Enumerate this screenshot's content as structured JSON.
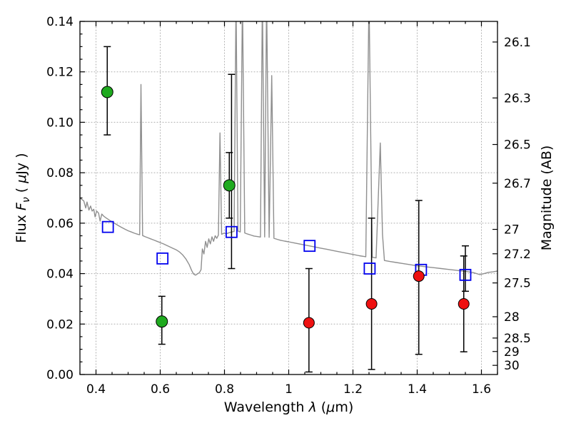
{
  "chart_data": {
    "type": "scatter",
    "title": "",
    "grid": {
      "show": true,
      "style": "dotted",
      "color": "#ababab"
    },
    "axes": {
      "x": {
        "label_parts": [
          {
            "text": "Wavelength  ",
            "style": "normal"
          },
          {
            "text": "λ",
            "style": "italic"
          },
          {
            "text": " (",
            "style": "normal"
          },
          {
            "text": "μ",
            "style": "italic"
          },
          {
            "text": "m)",
            "style": "normal"
          }
        ],
        "min": 0.35,
        "max": 1.65,
        "major_ticks": [
          0.4,
          0.6,
          0.8,
          1.0,
          1.2,
          1.4,
          1.6
        ],
        "major_tick_labels": [
          "0.4",
          "0.6",
          "0.8",
          "1",
          "1.2",
          "1.4",
          "1.6"
        ],
        "minor_tick_step": 0.05
      },
      "y_left": {
        "label_parts": [
          {
            "text": "Flux  ",
            "style": "normal"
          },
          {
            "text": "F",
            "style": "italic"
          },
          {
            "text": "ν",
            "style": "sub"
          },
          {
            "text": "  ( ",
            "style": "normal"
          },
          {
            "text": "μ",
            "style": "italic"
          },
          {
            "text": "Jy )",
            "style": "normal"
          }
        ],
        "min": 0.0,
        "max": 0.14,
        "major_ticks": [
          0.0,
          0.02,
          0.04,
          0.06,
          0.08,
          0.1,
          0.12,
          0.14
        ],
        "major_tick_labels": [
          "0.00",
          "0.02",
          "0.04",
          "0.06",
          "0.08",
          "0.10",
          "0.12",
          "0.14"
        ],
        "minor_tick_step": 0.005
      },
      "y_right": {
        "label": "Magnitude (AB)",
        "tick_mags": [
          26.1,
          26.3,
          26.5,
          26.7,
          27,
          27.2,
          27.5,
          28,
          28.5,
          29,
          30
        ],
        "tick_labels": [
          "26.1",
          "26.3",
          "26.5",
          "26.7",
          "27",
          "27.2",
          "27.5",
          "28",
          "28.5",
          "29",
          "30"
        ],
        "ab_zeropoint_ujy": 23.9
      }
    },
    "spectrum": {
      "name": "model-spectrum",
      "color": "#8f8f8f",
      "width": 1.4,
      "points": [
        [
          0.35,
          0.07
        ],
        [
          0.356,
          0.0694
        ],
        [
          0.362,
          0.0688
        ],
        [
          0.368,
          0.066
        ],
        [
          0.372,
          0.0684
        ],
        [
          0.378,
          0.0652
        ],
        [
          0.383,
          0.0668
        ],
        [
          0.388,
          0.0648
        ],
        [
          0.393,
          0.0655
        ],
        [
          0.397,
          0.0625
        ],
        [
          0.402,
          0.0648
        ],
        [
          0.408,
          0.064
        ],
        [
          0.413,
          0.0608
        ],
        [
          0.418,
          0.0636
        ],
        [
          0.424,
          0.0628
        ],
        [
          0.43,
          0.0622
        ],
        [
          0.437,
          0.0616
        ],
        [
          0.444,
          0.061
        ],
        [
          0.452,
          0.0604
        ],
        [
          0.461,
          0.0597
        ],
        [
          0.47,
          0.059
        ],
        [
          0.48,
          0.0583
        ],
        [
          0.49,
          0.0576
        ],
        [
          0.5,
          0.057
        ],
        [
          0.51,
          0.0565
        ],
        [
          0.52,
          0.056
        ],
        [
          0.53,
          0.0556
        ],
        [
          0.536,
          0.0554
        ],
        [
          0.54,
          0.115
        ],
        [
          0.545,
          0.0551
        ],
        [
          0.552,
          0.0547
        ],
        [
          0.56,
          0.0543
        ],
        [
          0.57,
          0.0538
        ],
        [
          0.58,
          0.0533
        ],
        [
          0.59,
          0.0528
        ],
        [
          0.6,
          0.0523
        ],
        [
          0.61,
          0.0518
        ],
        [
          0.62,
          0.0512
        ],
        [
          0.63,
          0.0506
        ],
        [
          0.64,
          0.05
        ],
        [
          0.65,
          0.0494
        ],
        [
          0.66,
          0.0486
        ],
        [
          0.67,
          0.0474
        ],
        [
          0.68,
          0.0458
        ],
        [
          0.69,
          0.0436
        ],
        [
          0.698,
          0.0412
        ],
        [
          0.704,
          0.0398
        ],
        [
          0.71,
          0.0394
        ],
        [
          0.716,
          0.0399
        ],
        [
          0.722,
          0.0404
        ],
        [
          0.727,
          0.0416
        ],
        [
          0.731,
          0.0498
        ],
        [
          0.736,
          0.0478
        ],
        [
          0.741,
          0.0528
        ],
        [
          0.746,
          0.0504
        ],
        [
          0.751,
          0.0538
        ],
        [
          0.756,
          0.0518
        ],
        [
          0.761,
          0.0546
        ],
        [
          0.766,
          0.0528
        ],
        [
          0.771,
          0.055
        ],
        [
          0.776,
          0.054
        ],
        [
          0.781,
          0.0553
        ],
        [
          0.786,
          0.0958
        ],
        [
          0.791,
          0.0556
        ],
        [
          0.798,
          0.056
        ],
        [
          0.806,
          0.0558
        ],
        [
          0.814,
          0.0562
        ],
        [
          0.822,
          0.0565
        ],
        [
          0.83,
          0.0567
        ],
        [
          0.836,
          0.15
        ],
        [
          0.842,
          0.0569
        ],
        [
          0.849,
          0.0565
        ],
        [
          0.856,
          0.15
        ],
        [
          0.863,
          0.0561
        ],
        [
          0.872,
          0.0557
        ],
        [
          0.882,
          0.0553
        ],
        [
          0.892,
          0.0549
        ],
        [
          0.902,
          0.0547
        ],
        [
          0.912,
          0.0545
        ],
        [
          0.918,
          0.15
        ],
        [
          0.925,
          0.0545
        ],
        [
          0.931,
          0.15
        ],
        [
          0.939,
          0.0544
        ],
        [
          0.947,
          0.1185
        ],
        [
          0.954,
          0.054
        ],
        [
          0.964,
          0.0536
        ],
        [
          0.975,
          0.0532
        ],
        [
          0.987,
          0.0529
        ],
        [
          1.0,
          0.0526
        ],
        [
          1.02,
          0.0521
        ],
        [
          1.04,
          0.0516
        ],
        [
          1.06,
          0.0511
        ],
        [
          1.08,
          0.0506
        ],
        [
          1.1,
          0.0501
        ],
        [
          1.12,
          0.0496
        ],
        [
          1.14,
          0.0491
        ],
        [
          1.16,
          0.0486
        ],
        [
          1.18,
          0.0481
        ],
        [
          1.2,
          0.0476
        ],
        [
          1.22,
          0.0471
        ],
        [
          1.24,
          0.0467
        ],
        [
          1.25,
          0.15
        ],
        [
          1.26,
          0.0465
        ],
        [
          1.272,
          0.0462
        ],
        [
          1.285,
          0.0918
        ],
        [
          1.292,
          0.0555
        ],
        [
          1.298,
          0.0452
        ],
        [
          1.315,
          0.0448
        ],
        [
          1.335,
          0.0444
        ],
        [
          1.355,
          0.044
        ],
        [
          1.375,
          0.0436
        ],
        [
          1.395,
          0.0432
        ],
        [
          1.415,
          0.0429
        ],
        [
          1.435,
          0.0426
        ],
        [
          1.455,
          0.0423
        ],
        [
          1.475,
          0.042
        ],
        [
          1.495,
          0.0417
        ],
        [
          1.515,
          0.0414
        ],
        [
          1.535,
          0.0411
        ],
        [
          1.555,
          0.0408
        ],
        [
          1.575,
          0.0404
        ],
        [
          1.595,
          0.0396
        ],
        [
          1.608,
          0.04
        ],
        [
          1.622,
          0.0405
        ],
        [
          1.636,
          0.0407
        ],
        [
          1.65,
          0.041
        ]
      ]
    },
    "series": [
      {
        "name": "green-circles",
        "marker": "circle",
        "face": "#1faa1f",
        "edge": "#000000",
        "size": 8,
        "points": [
          {
            "x": 0.435,
            "y": 0.112,
            "lo": 0.095,
            "hi": 0.13
          },
          {
            "x": 0.605,
            "y": 0.021,
            "lo": 0.012,
            "hi": 0.031
          },
          {
            "x": 0.815,
            "y": 0.075,
            "lo": 0.062,
            "hi": 0.088
          }
        ]
      },
      {
        "name": "blue-open-squares",
        "marker": "square",
        "face": "none",
        "edge": "#0000ee",
        "size": 7.5,
        "points": [
          {
            "x": 0.437,
            "y": 0.0585
          },
          {
            "x": 0.607,
            "y": 0.046
          },
          {
            "x": 0.822,
            "y": 0.0565,
            "lo": 0.042,
            "hi": 0.119
          },
          {
            "x": 1.065,
            "y": 0.051
          },
          {
            "x": 1.252,
            "y": 0.042
          },
          {
            "x": 1.412,
            "y": 0.0415
          },
          {
            "x": 1.55,
            "y": 0.0395,
            "lo": 0.033,
            "hi": 0.051
          }
        ]
      },
      {
        "name": "red-circles",
        "marker": "circle",
        "face": "#ee1111",
        "edge": "#000000",
        "size": 7.5,
        "points": [
          {
            "x": 1.063,
            "y": 0.0205,
            "lo": 0.001,
            "hi": 0.042
          },
          {
            "x": 1.258,
            "y": 0.028,
            "lo": 0.002,
            "hi": 0.062
          },
          {
            "x": 1.405,
            "y": 0.039,
            "lo": 0.008,
            "hi": 0.069
          },
          {
            "x": 1.545,
            "y": 0.028,
            "lo": 0.009,
            "hi": 0.047
          }
        ]
      }
    ],
    "errorbar_color": "#000000"
  }
}
